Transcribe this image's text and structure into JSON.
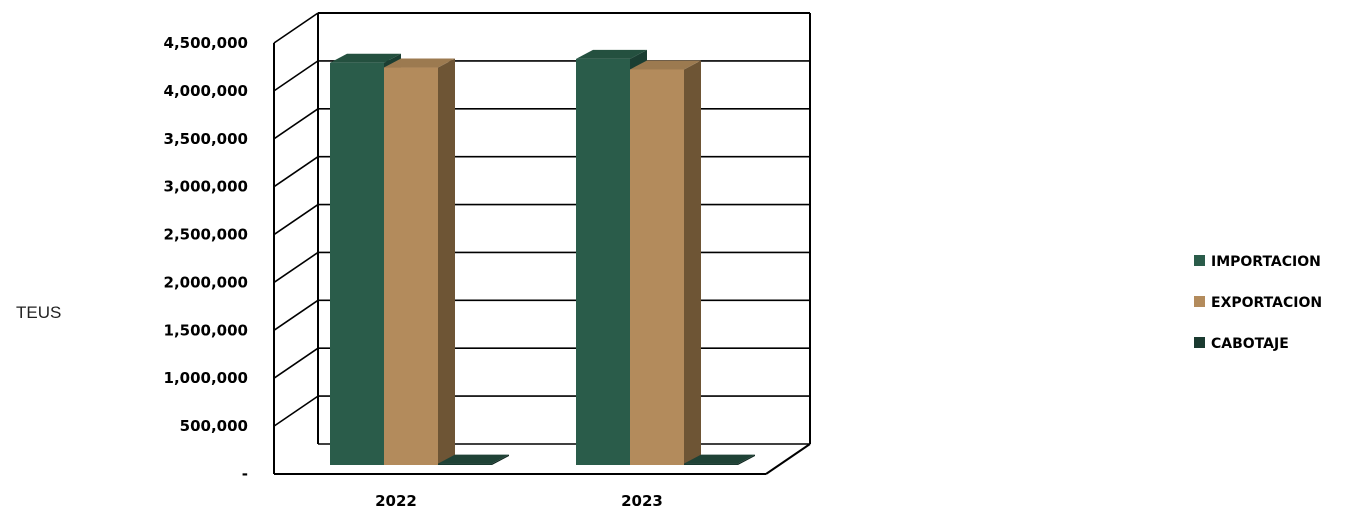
{
  "chart_data": {
    "type": "bar",
    "categories": [
      "2022",
      "2023"
    ],
    "series": [
      {
        "name": "IMPORTACION",
        "values": [
          4200000,
          4240000
        ]
      },
      {
        "name": "EXPORTACION",
        "values": [
          4150000,
          4130000
        ]
      },
      {
        "name": "CABOTAJE",
        "values": [
          15000,
          15000
        ]
      }
    ],
    "ylabel": "TEUS",
    "ylim": [
      0,
      4500000
    ],
    "yticks": [
      0,
      500000,
      1000000,
      1500000,
      2000000,
      2500000,
      3000000,
      3500000,
      4000000,
      4500000
    ],
    "ytick_labels": [
      "-",
      "500,000",
      "1,000,000",
      "1,500,000",
      "2,000,000",
      "2,500,000",
      "3,000,000",
      "3,500,000",
      "4,000,000",
      "4,500,000"
    ],
    "grid": true,
    "three_d": true,
    "legend_position": "right",
    "colors": {
      "IMPORTACION": {
        "front": "#2a5c4a",
        "side": "#1b3e32",
        "top": "#24503f"
      },
      "EXPORTACION": {
        "front": "#b38b5c",
        "side": "#6e5535",
        "top": "#9c7a50"
      },
      "CABOTAJE": {
        "front": "#1a3a30",
        "side": "#102720",
        "top": "#1f4236"
      }
    }
  }
}
